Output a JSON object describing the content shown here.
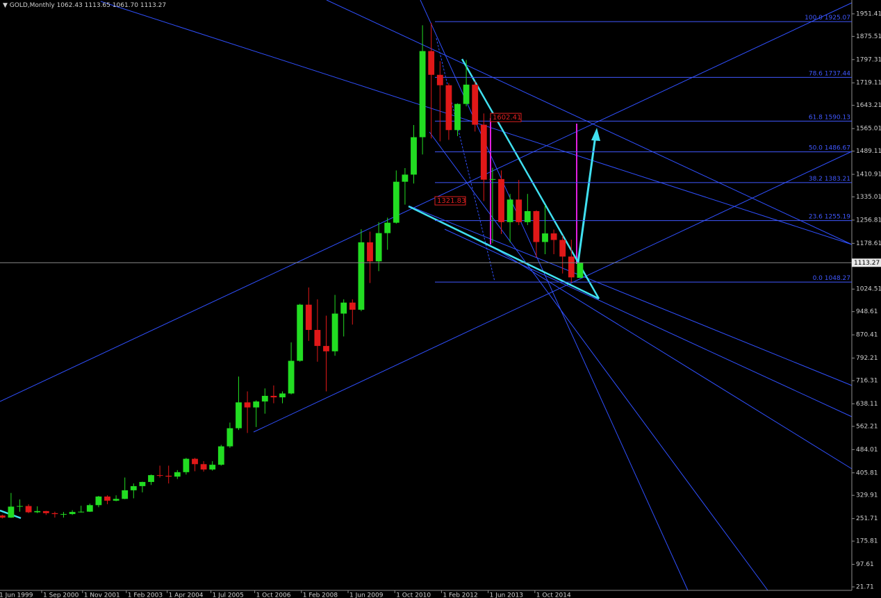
{
  "header": {
    "symbol": "GOLD,Monthly",
    "last_labels": [
      "1062.43",
      "1113.65",
      "1061.70",
      "1113.27"
    ]
  },
  "chart_data": {
    "type": "candlestick",
    "title": "GOLD,Monthly",
    "x": [
      "1999-06",
      "1999-09",
      "1999-12",
      "2000-03",
      "2000-06",
      "2000-09",
      "2000-12",
      "2001-03",
      "2001-06",
      "2001-09",
      "2001-12",
      "2002-03",
      "2002-06",
      "2002-09",
      "2002-12",
      "2003-03",
      "2003-06",
      "2003-09",
      "2003-12",
      "2004-03",
      "2004-06",
      "2004-09",
      "2004-12",
      "2005-03",
      "2005-06",
      "2005-09",
      "2005-12",
      "2006-03",
      "2006-06",
      "2006-09",
      "2006-12",
      "2007-03",
      "2007-06",
      "2007-09",
      "2007-12",
      "2008-03",
      "2008-06",
      "2008-09",
      "2008-12",
      "2009-03",
      "2009-06",
      "2009-09",
      "2009-12",
      "2010-03",
      "2010-06",
      "2010-09",
      "2010-12",
      "2011-03",
      "2011-06",
      "2011-09",
      "2011-12",
      "2012-03",
      "2012-06",
      "2012-09",
      "2012-12",
      "2013-03",
      "2013-06",
      "2013-09",
      "2013-12",
      "2014-03",
      "2014-06",
      "2014-09",
      "2014-12",
      "2015-03",
      "2015-06",
      "2015-09",
      "2015-12"
    ],
    "open": [
      262,
      255,
      292,
      294,
      273,
      277,
      270,
      267,
      267,
      274,
      275,
      297,
      326,
      312,
      318,
      347,
      361,
      375,
      398,
      396,
      393,
      408,
      453,
      435,
      417,
      433,
      495,
      556,
      643,
      626,
      646,
      665,
      660,
      673,
      783,
      972,
      887,
      833,
      815,
      942,
      979,
      955,
      1182,
      1118,
      1213,
      1248,
      1386,
      1410,
      1536,
      1826,
      1746,
      1711,
      1560,
      1648,
      1713,
      1578,
      1393,
      1395,
      1250,
      1326,
      1250,
      1287,
      1183,
      1212,
      1190,
      1134,
      1062.43
    ],
    "high": [
      265,
      338,
      316,
      300,
      293,
      278,
      275,
      274,
      280,
      295,
      302,
      328,
      330,
      330,
      390,
      370,
      376,
      400,
      430,
      430,
      415,
      456,
      456,
      445,
      445,
      500,
      575,
      730,
      680,
      650,
      690,
      700,
      680,
      845,
      975,
      1030,
      990,
      935,
      1005,
      990,
      990,
      1226,
      1218,
      1250,
      1265,
      1424,
      1432,
      1577,
      1913,
      1921,
      1792,
      1718,
      1650,
      1796,
      1725,
      1616,
      1433,
      1424,
      1345,
      1392,
      1345,
      1290,
      1307,
      1225,
      1205,
      1191,
      1113.65
    ],
    "low": [
      252,
      254,
      275,
      270,
      270,
      264,
      255,
      255,
      264,
      272,
      274,
      290,
      300,
      310,
      317,
      320,
      340,
      365,
      390,
      370,
      385,
      400,
      411,
      410,
      413,
      430,
      490,
      550,
      540,
      560,
      605,
      640,
      640,
      670,
      780,
      850,
      780,
      680,
      800,
      865,
      905,
      950,
      1045,
      1085,
      1157,
      1245,
      1309,
      1380,
      1478,
      1532,
      1522,
      1527,
      1540,
      1640,
      1555,
      1321,
      1180,
      1210,
      1182,
      1240,
      1240,
      1131,
      1142,
      1142,
      1077,
      1046,
      1061.7
    ],
    "close": [
      255,
      292,
      294,
      273,
      277,
      270,
      267,
      267,
      274,
      275,
      297,
      326,
      312,
      318,
      347,
      361,
      375,
      398,
      396,
      393,
      408,
      453,
      435,
      417,
      433,
      495,
      556,
      643,
      626,
      646,
      665,
      660,
      673,
      783,
      972,
      887,
      833,
      815,
      942,
      979,
      955,
      1182,
      1118,
      1213,
      1248,
      1386,
      1410,
      1536,
      1826,
      1746,
      1711,
      1560,
      1648,
      1713,
      1578,
      1393,
      1395,
      1250,
      1326,
      1250,
      1287,
      1183,
      1212,
      1190,
      1134,
      1064,
      1113.27
    ],
    "colors": {
      "up": "#22dd22",
      "down": "#e01818",
      "fib": "#4058ff",
      "price_line": "#8a8a8a"
    },
    "ylim": [
      10,
      1998
    ],
    "yticks": [
      1951.41,
      1875.51,
      1797.31,
      1719.11,
      1643.21,
      1565.01,
      1489.11,
      1410.91,
      1335.01,
      1256.81,
      1178.61,
      1024.51,
      948.61,
      870.41,
      792.21,
      716.31,
      638.11,
      562.21,
      484.01,
      405.81,
      329.91,
      251.71,
      175.81,
      97.61,
      21.71
    ],
    "xticks": [
      "1 Jun 1999",
      "1 Sep 2000",
      "1 Nov 2001",
      "1 Feb 2003",
      "1 Apr 2004",
      "1 Jul 2005",
      "1 Oct 2006",
      "1 Feb 2008",
      "1 Jun 2009",
      "1 Oct 2010",
      "1 Feb 2012",
      "1 Jun 2013",
      "1 Oct 2014"
    ],
    "fib_levels": [
      {
        "ratio": "100.0",
        "price": 1925.07
      },
      {
        "ratio": "78.6",
        "price": 1737.44
      },
      {
        "ratio": "61.8",
        "price": 1590.13
      },
      {
        "ratio": "50.0",
        "price": 1486.67
      },
      {
        "ratio": "38.2",
        "price": 1383.21
      },
      {
        "ratio": "23.6",
        "price": 1255.19
      },
      {
        "ratio": "0.0",
        "price": 1048.27
      }
    ],
    "price_tags": [
      1602.41,
      1321.83
    ]
  }
}
